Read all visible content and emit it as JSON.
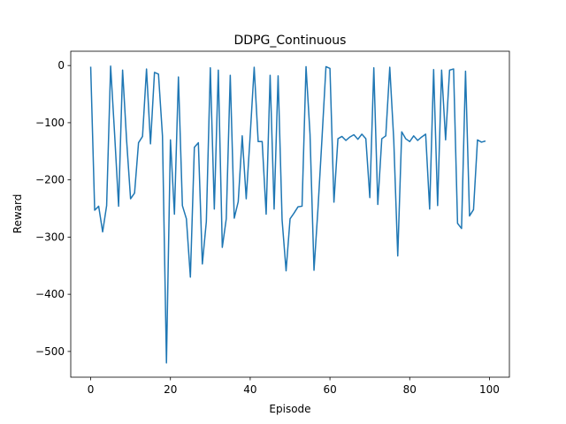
{
  "chart_data": {
    "type": "line",
    "title": "DDPG_Continuous",
    "xlabel": "Episode",
    "ylabel": "Reward",
    "xlim": [
      -5,
      105
    ],
    "ylim": [
      -545,
      25
    ],
    "xticks": [
      0,
      20,
      40,
      60,
      80,
      100
    ],
    "yticks": [
      0,
      -100,
      -200,
      -300,
      -400,
      -500
    ],
    "xtick_labels": [
      "0",
      "20",
      "40",
      "60",
      "80",
      "100"
    ],
    "ytick_labels": [
      "0",
      "−100",
      "−200",
      "−300",
      "−400",
      "−500"
    ],
    "grid": false,
    "line_color": "#1f77b4",
    "series": [
      {
        "x": [
          0,
          1,
          2,
          3,
          4,
          5,
          6,
          7,
          8,
          9,
          10,
          11,
          12,
          13,
          14,
          15,
          16,
          17,
          18,
          19,
          20,
          21,
          22,
          23,
          24,
          25,
          26,
          27,
          28,
          29,
          30,
          31,
          32,
          33,
          34,
          35,
          36,
          37,
          38,
          39,
          40,
          41,
          42,
          43,
          44,
          45,
          46,
          47,
          48,
          49,
          50,
          51,
          52,
          53,
          54,
          55,
          56,
          57,
          58,
          59,
          60,
          61,
          62,
          63,
          64,
          65,
          66,
          67,
          68,
          69,
          70,
          71,
          72,
          73,
          74,
          75,
          76,
          77,
          78,
          79,
          80,
          81,
          82,
          83,
          84,
          85,
          86,
          87,
          88,
          89,
          90,
          91,
          92,
          93,
          94,
          95,
          96,
          97,
          98,
          99
        ],
        "values": [
          -2,
          -253,
          -246,
          -291,
          -245,
          -1,
          -120,
          -246,
          -8,
          -130,
          -233,
          -223,
          -135,
          -124,
          -6,
          -137,
          -12,
          -15,
          -123,
          -520,
          -130,
          -260,
          -20,
          -245,
          -268,
          -370,
          -143,
          -135,
          -347,
          -273,
          -4,
          -251,
          -8,
          -318,
          -268,
          -17,
          -267,
          -238,
          -123,
          -233,
          -122,
          -3,
          -133,
          -133,
          -260,
          -17,
          -251,
          -18,
          -270,
          -359,
          -268,
          -258,
          -247,
          -246,
          -2,
          -120,
          -358,
          -250,
          -128,
          -2,
          -5,
          -239,
          -128,
          -124,
          -131,
          -125,
          -121,
          -129,
          -120,
          -128,
          -231,
          -4,
          -243,
          -128,
          -123,
          -3,
          -130,
          -333,
          -116,
          -128,
          -133,
          -123,
          -131,
          -125,
          -120,
          -251,
          -7,
          -245,
          -8,
          -130,
          -8,
          -6,
          -276,
          -285,
          -10,
          -263,
          -252,
          -130,
          -134,
          -132
        ]
      }
    ]
  }
}
